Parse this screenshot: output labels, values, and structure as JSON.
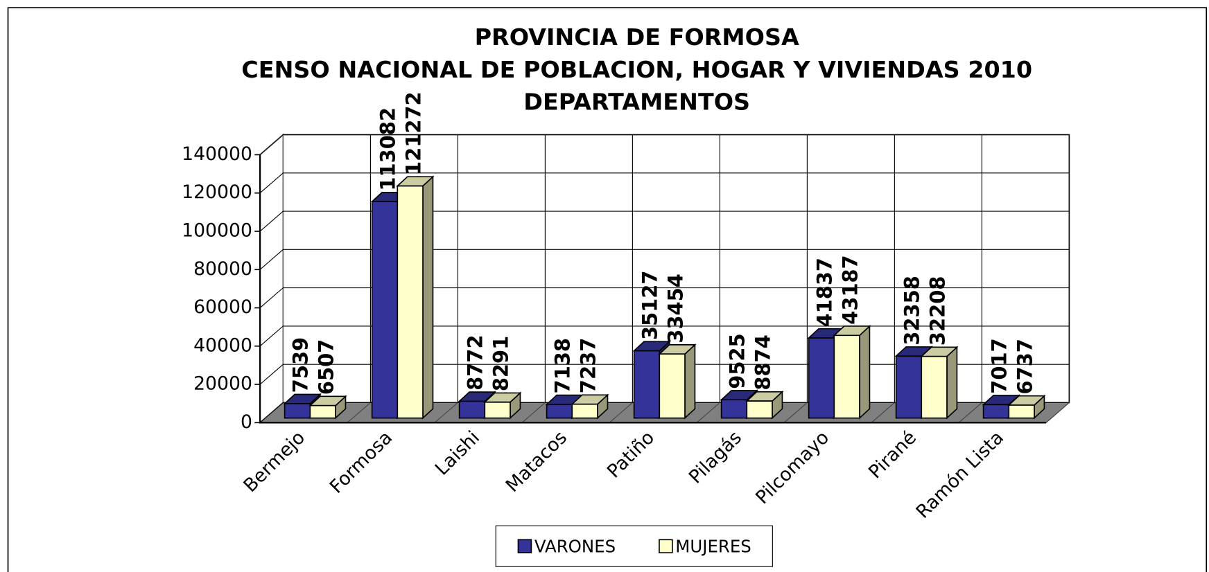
{
  "chart_data": {
    "type": "bar3d",
    "title": [
      "PROVINCIA DE FORMOSA",
      "CENSO NACIONAL DE POBLACION, HOGAR Y VIVIENDAS 2010",
      "DEPARTAMENTOS"
    ],
    "categories": [
      "Bermejo",
      "Formosa",
      "Laishi",
      "Matacos",
      "Patiño",
      "Pilagás",
      "Pilcomayo",
      "Pirané",
      "Ramón Lista"
    ],
    "series": [
      {
        "name": "VARONES",
        "color": "#333399",
        "values": [
          7539,
          113082,
          8772,
          7138,
          35127,
          9525,
          41837,
          32358,
          7017
        ]
      },
      {
        "name": "MUJERES",
        "color": "#ffffcc",
        "values": [
          6507,
          121272,
          8291,
          7237,
          33454,
          8874,
          43187,
          32208,
          6737
        ]
      }
    ],
    "ylim": [
      0,
      140000
    ],
    "yticks": [
      0,
      20000,
      40000,
      60000,
      80000,
      100000,
      120000,
      140000
    ],
    "grid": true,
    "legend": "bottom"
  }
}
